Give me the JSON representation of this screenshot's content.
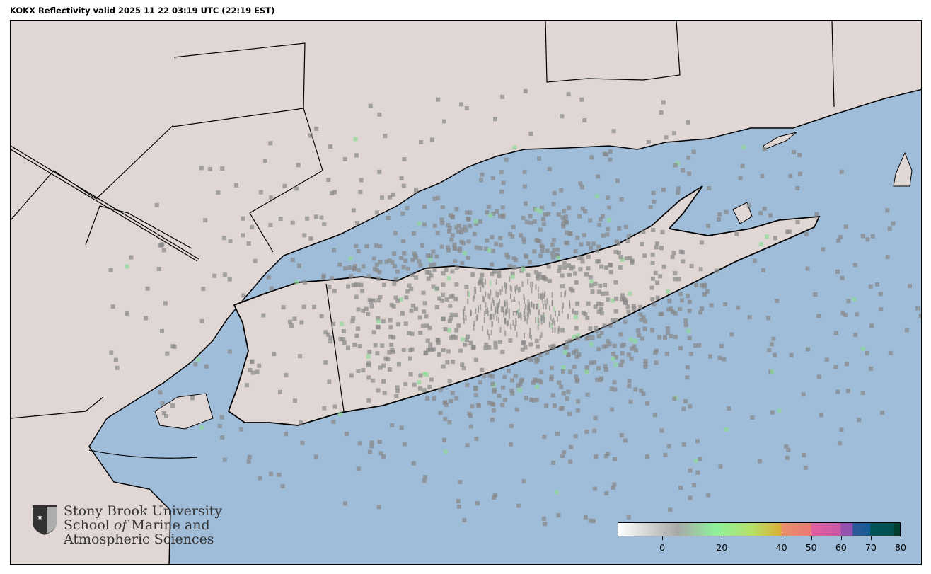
{
  "title": "KOKX Reflectivity valid 2025 11 22 03:19 UTC (22:19 EST)",
  "colors": {
    "ocean": "#9fbcd8",
    "land": "#e0d7d5",
    "border": "#000000"
  },
  "colorbar": {
    "min": -15,
    "max": 80,
    "ticks": [
      {
        "value": 0,
        "label": "0"
      },
      {
        "value": 20,
        "label": "20"
      },
      {
        "value": 40,
        "label": "40"
      },
      {
        "value": 50,
        "label": "50"
      },
      {
        "value": 60,
        "label": "60"
      },
      {
        "value": 70,
        "label": "70"
      },
      {
        "value": 80,
        "label": "80"
      }
    ],
    "stops": [
      {
        "v": -15,
        "c": "#ffffff"
      },
      {
        "v": 5,
        "c": "#a8a8a8"
      },
      {
        "v": 18,
        "c": "#8cf29a"
      },
      {
        "v": 30,
        "c": "#b5e06a"
      },
      {
        "v": 40,
        "c": "#dcae35"
      },
      {
        "v": 40.1,
        "c": "#e8906a"
      },
      {
        "v": 50,
        "c": "#e87a74"
      },
      {
        "v": 50.1,
        "c": "#e060a0"
      },
      {
        "v": 60,
        "c": "#c858a8"
      },
      {
        "v": 60.1,
        "c": "#9850b0"
      },
      {
        "v": 64,
        "c": "#9050b0"
      },
      {
        "v": 64.1,
        "c": "#30589c"
      },
      {
        "v": 70,
        "c": "#105c94"
      },
      {
        "v": 70.1,
        "c": "#005558"
      },
      {
        "v": 78,
        "c": "#005050"
      },
      {
        "v": 78.1,
        "c": "#004030"
      },
      {
        "v": 80,
        "c": "#004030"
      }
    ]
  },
  "logo": {
    "line1": "Stony Brook University",
    "line2a": "School ",
    "line2b": "of",
    "line2c": " Marine and",
    "line3": "Atmospheric Sciences"
  }
}
